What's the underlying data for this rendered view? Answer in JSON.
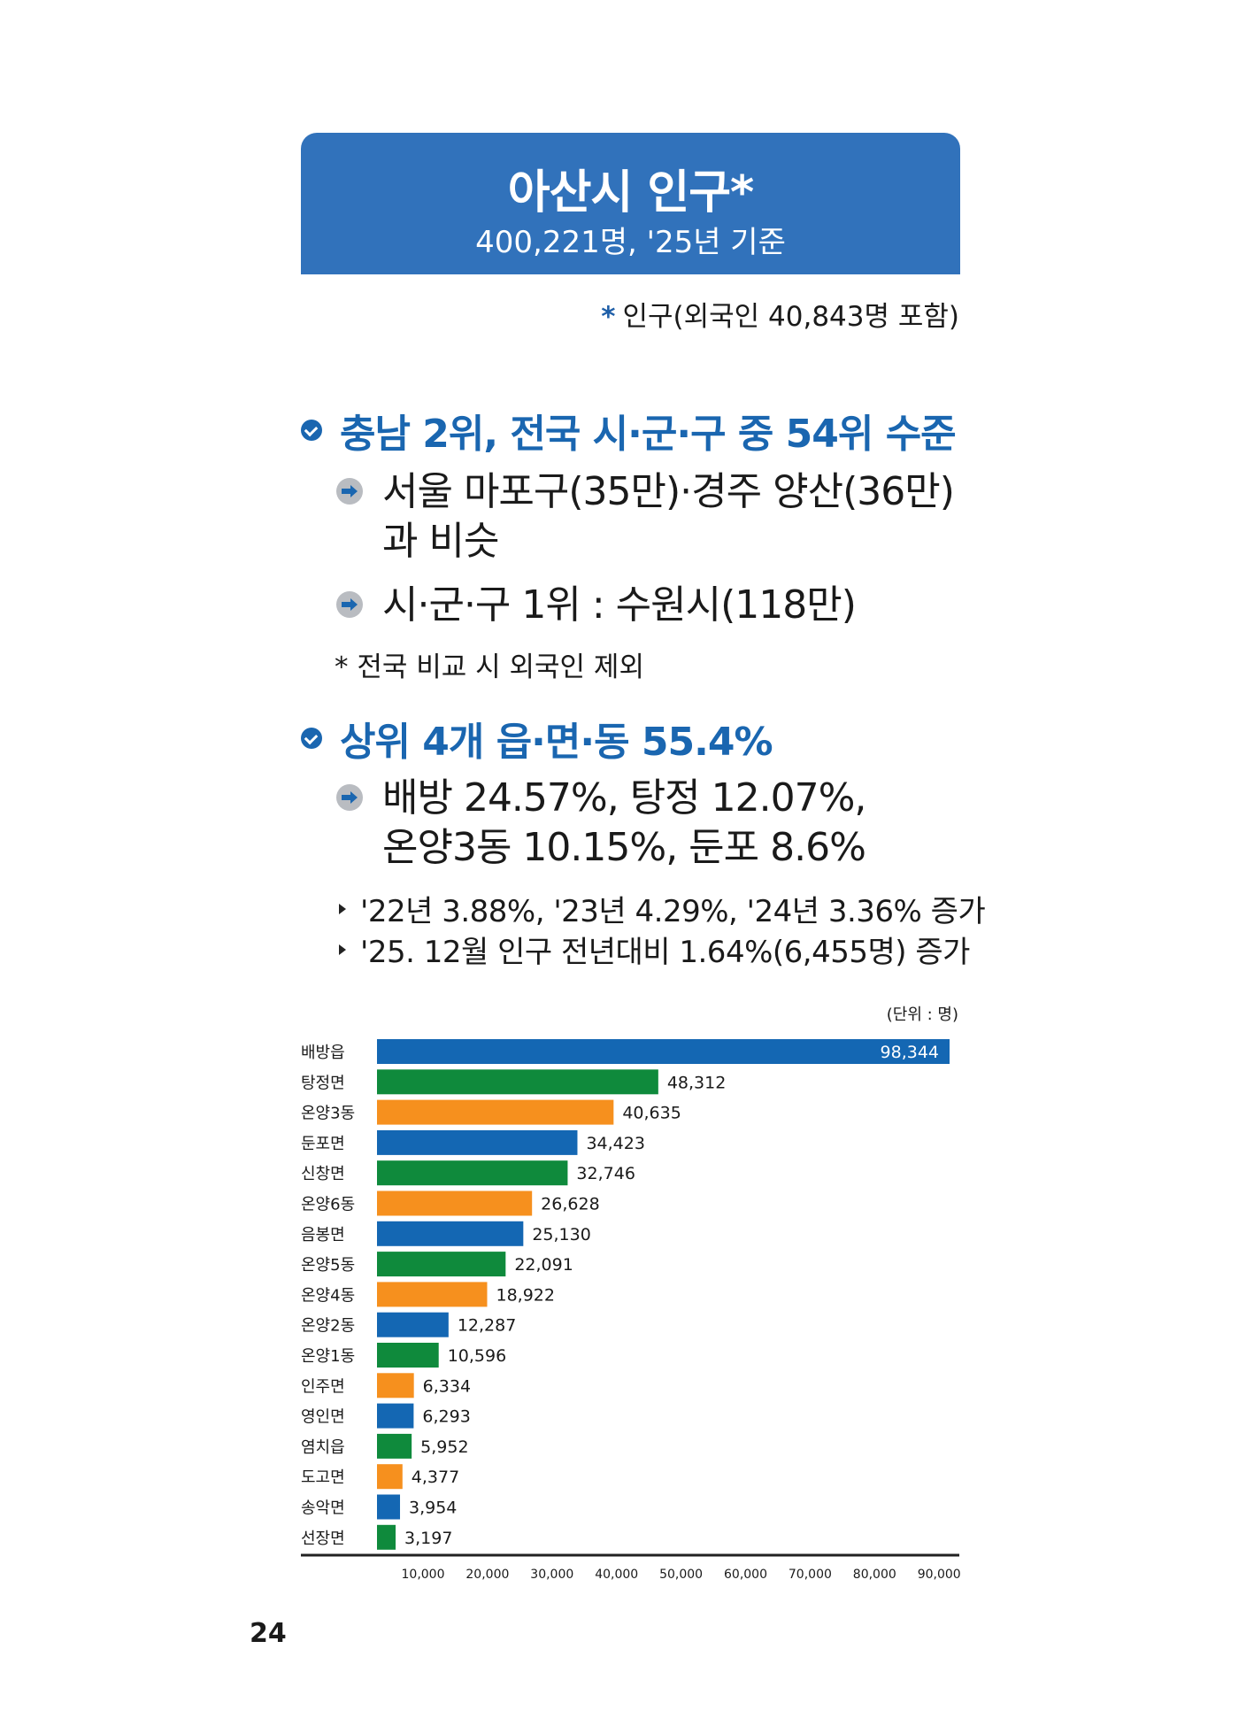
{
  "header": {
    "title": "아산시 인구*",
    "subtitle": "400,221명, '25년 기준"
  },
  "footnote_top": {
    "star": "*",
    "text": "인구(외국인 40,843명 포함)"
  },
  "section1": {
    "heading": "충남 2위, 전국 시·군·구 중 54위 수준",
    "bullets": [
      {
        "line1": "서울 마포구(35만)·경주 양산(36만)",
        "line2": "과 비슷"
      },
      {
        "line1": "시·군·구 1위 : 수원시(118만)"
      }
    ],
    "note": "* 전국 비교 시 외국인 제외"
  },
  "section2": {
    "heading": "상위 4개 읍·면·동 55.4%",
    "bullet": {
      "line1": "배방 24.57%, 탕정 12.07%,",
      "line2": "온양3동 10.15%, 둔포 8.6%"
    },
    "notes": [
      "'22년 3.88%, '23년 4.29%, '24년 3.36% 증가",
      "'25. 12월 인구 전년대비 1.64%(6,455명) 증가"
    ]
  },
  "chart_unit": "(단위 : 명)",
  "chart_data": {
    "type": "bar",
    "orientation": "horizontal",
    "categories": [
      "배방읍",
      "탕정면",
      "온양3동",
      "둔포면",
      "신창면",
      "온양6동",
      "음봉면",
      "온양5동",
      "온양4동",
      "온양2동",
      "온양1동",
      "인주면",
      "영인면",
      "염치읍",
      "도고면",
      "송악면",
      "선장면"
    ],
    "values": [
      98344,
      48312,
      40635,
      34423,
      32746,
      26628,
      25130,
      22091,
      18922,
      12287,
      10596,
      6334,
      6293,
      5952,
      4377,
      3954,
      3197
    ],
    "value_labels": [
      "98,344",
      "48,312",
      "40,635",
      "34,423",
      "32,746",
      "26,628",
      "25,130",
      "22,091",
      "18,922",
      "12,287",
      "10,596",
      "6,334",
      "6,293",
      "5,952",
      "4,377",
      "3,954",
      "3,197"
    ],
    "bar_colors": [
      "#1467b3",
      "#0f8a3c",
      "#f6901e",
      "#1467b3",
      "#0f8a3c",
      "#f6901e",
      "#1467b3",
      "#0f8a3c",
      "#f6901e",
      "#1467b3",
      "#0f8a3c",
      "#f6901e",
      "#1467b3",
      "#0f8a3c",
      "#f6901e",
      "#1467b3",
      "#0f8a3c"
    ],
    "x_ticks": [
      "10,000",
      "20,000",
      "30,000",
      "40,000",
      "50,000",
      "60,000",
      "70,000",
      "80,000",
      "90,000"
    ],
    "xlim": [
      0,
      90000
    ],
    "grid": false
  },
  "page_number": "24"
}
